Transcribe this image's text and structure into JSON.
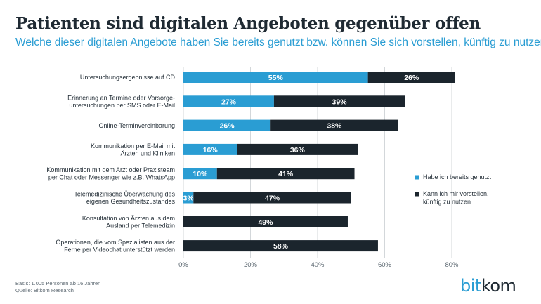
{
  "header": {
    "title": "Patienten sind digitalen Angeboten gegenüber offen",
    "subtitle": "Welche dieser digitalen Angebote haben Sie bereits genutzt bzw. können Sie sich vorstellen, künftig zu nutzen?"
  },
  "footer": {
    "basis": "Basis: 1.005 Personen ab 16 Jahren",
    "quelle": "Quelle: Bitkom Research"
  },
  "logo": {
    "part1": "bit",
    "part2": "kom"
  },
  "colors": {
    "used": "#2a9dd3",
    "imaginable": "#1b252d",
    "grid": "#c8cdd1",
    "text": "#1f2a33"
  },
  "chart_data": {
    "type": "bar",
    "orientation": "horizontal",
    "stacked": true,
    "categories": [
      [
        "Untersuchungsergebnisse auf CD"
      ],
      [
        "Erinnerung an Termine oder Vorsorge-",
        "untersuchungen per SMS oder E-Mail"
      ],
      [
        "Online-Terminvereinbarung"
      ],
      [
        "Kommunikation per E-Mail mit",
        "Ärzten und Kliniken"
      ],
      [
        "Kommunikation mit dem Arzt oder Praxisteam",
        "per Chat oder Messenger wie z.B. WhatsApp"
      ],
      [
        "Telemedizinische Überwachung des",
        "eigenen Gesundheitszustandes"
      ],
      [
        "Konsultation von Ärzten aus dem",
        "Ausland per Telemedizin"
      ],
      [
        "Operationen, die  vom Spezialisten aus der",
        "Ferne per Videochat unterstützt werden"
      ]
    ],
    "series": [
      {
        "name": "Habe ich bereits genutzt",
        "values": [
          55,
          27,
          26,
          16,
          10,
          3,
          null,
          null
        ],
        "labels": [
          "55%",
          "27%",
          "26%",
          "16%",
          "10%",
          "3%",
          "",
          ""
        ]
      },
      {
        "name": "Kann ich mir vorstellen, künftig zu nutzen",
        "values": [
          26,
          39,
          38,
          36,
          41,
          47,
          49,
          58
        ],
        "labels": [
          "26%",
          "39%",
          "38%",
          "36%",
          "41%",
          "47%",
          "49%",
          "58%"
        ]
      }
    ],
    "legend_lines": [
      [
        "Habe ich bereits genutzt"
      ],
      [
        "Kann ich mir vorstellen,",
        "künftig zu nutzen"
      ]
    ],
    "xlim": [
      0,
      80
    ],
    "xticks": [
      0,
      20,
      40,
      60,
      80
    ],
    "xtick_labels": [
      "0%",
      "20%",
      "40%",
      "60%",
      "80%"
    ],
    "grid": true,
    "legend_position": "right"
  }
}
